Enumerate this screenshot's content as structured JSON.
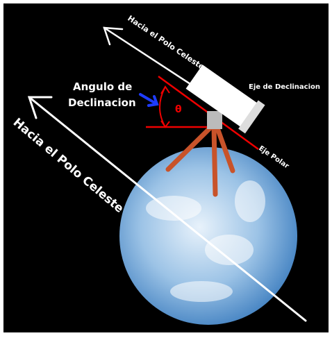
{
  "labels": {
    "top_arrow": "Hacia el Polo Celeste",
    "angle_title_line1": "Angulo de",
    "angle_title_line2": "Declinacion",
    "declination_axis": "Eje de Declinacion",
    "polar_axis": "Eje Polar",
    "main_arrow": "Hacia el Polo Celeste",
    "angle_symbol": "θ"
  }
}
